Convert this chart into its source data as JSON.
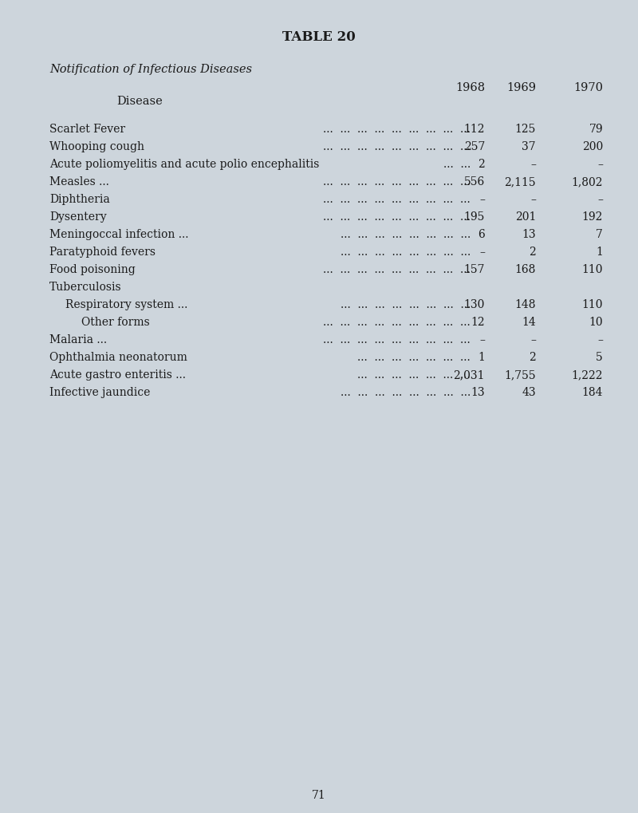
{
  "title": "TABLE 20",
  "subtitle": "Notification of Infectious Diseases",
  "col_headers": [
    "Disease",
    "1968",
    "1969",
    "1970"
  ],
  "rows": [
    {
      "label": "Scarlet Fever",
      "dots_count": 9,
      "indent": 0,
      "v1968": "112",
      "v1969": "125",
      "v1970": "79"
    },
    {
      "label": "Whooping cough",
      "dots_count": 9,
      "indent": 0,
      "v1968": "257",
      "v1969": "37",
      "v1970": "200"
    },
    {
      "label": "Acute poliomyelitis and acute polio encephalitis",
      "dots_count": 2,
      "indent": 0,
      "v1968": "2",
      "v1969": "–",
      "v1970": "–"
    },
    {
      "label": "Measles ...",
      "dots_count": 9,
      "indent": 0,
      "v1968": "556",
      "v1969": "2,115",
      "v1970": "1,802"
    },
    {
      "label": "Diphtheria",
      "dots_count": 9,
      "indent": 0,
      "v1968": "–",
      "v1969": "–",
      "v1970": "–"
    },
    {
      "label": "Dysentery",
      "dots_count": 9,
      "indent": 0,
      "v1968": "195",
      "v1969": "201",
      "v1970": "192"
    },
    {
      "label": "Meningoccal infection ...",
      "dots_count": 8,
      "indent": 0,
      "v1968": "6",
      "v1969": "13",
      "v1970": "7"
    },
    {
      "label": "Paratyphoid fevers",
      "dots_count": 8,
      "indent": 0,
      "v1968": "–",
      "v1969": "2",
      "v1970": "1"
    },
    {
      "label": "Food poisoning",
      "dots_count": 9,
      "indent": 0,
      "v1968": "157",
      "v1969": "168",
      "v1970": "110"
    },
    {
      "label": "Tuberculosis",
      "dots_count": 0,
      "indent": 0,
      "v1968": "",
      "v1969": "",
      "v1970": ""
    },
    {
      "label": "Respiratory system ...",
      "dots_count": 8,
      "indent": 1,
      "v1968": "130",
      "v1969": "148",
      "v1970": "110"
    },
    {
      "label": "Other forms",
      "dots_count": 9,
      "indent": 2,
      "v1968": "12",
      "v1969": "14",
      "v1970": "10"
    },
    {
      "label": "Malaria ...",
      "dots_count": 9,
      "indent": 0,
      "v1968": "–",
      "v1969": "–",
      "v1970": "–"
    },
    {
      "label": "Ophthalmia neonatorum",
      "dots_count": 7,
      "indent": 0,
      "v1968": "1",
      "v1969": "2",
      "v1970": "5"
    },
    {
      "label": "Acute gastro enteritis ...",
      "dots_count": 7,
      "indent": 0,
      "v1968": "2,031",
      "v1969": "1,755",
      "v1970": "1,222"
    },
    {
      "label": "Infective jaundice",
      "dots_count": 8,
      "indent": 0,
      "v1968": "13",
      "v1969": "43",
      "v1970": "184"
    }
  ],
  "page_number": "71",
  "bg_color": "#cdd5dc",
  "text_color": "#1a1a1a",
  "title_fontsize": 12,
  "subtitle_fontsize": 10.5,
  "header_fontsize": 10.5,
  "row_fontsize": 10
}
